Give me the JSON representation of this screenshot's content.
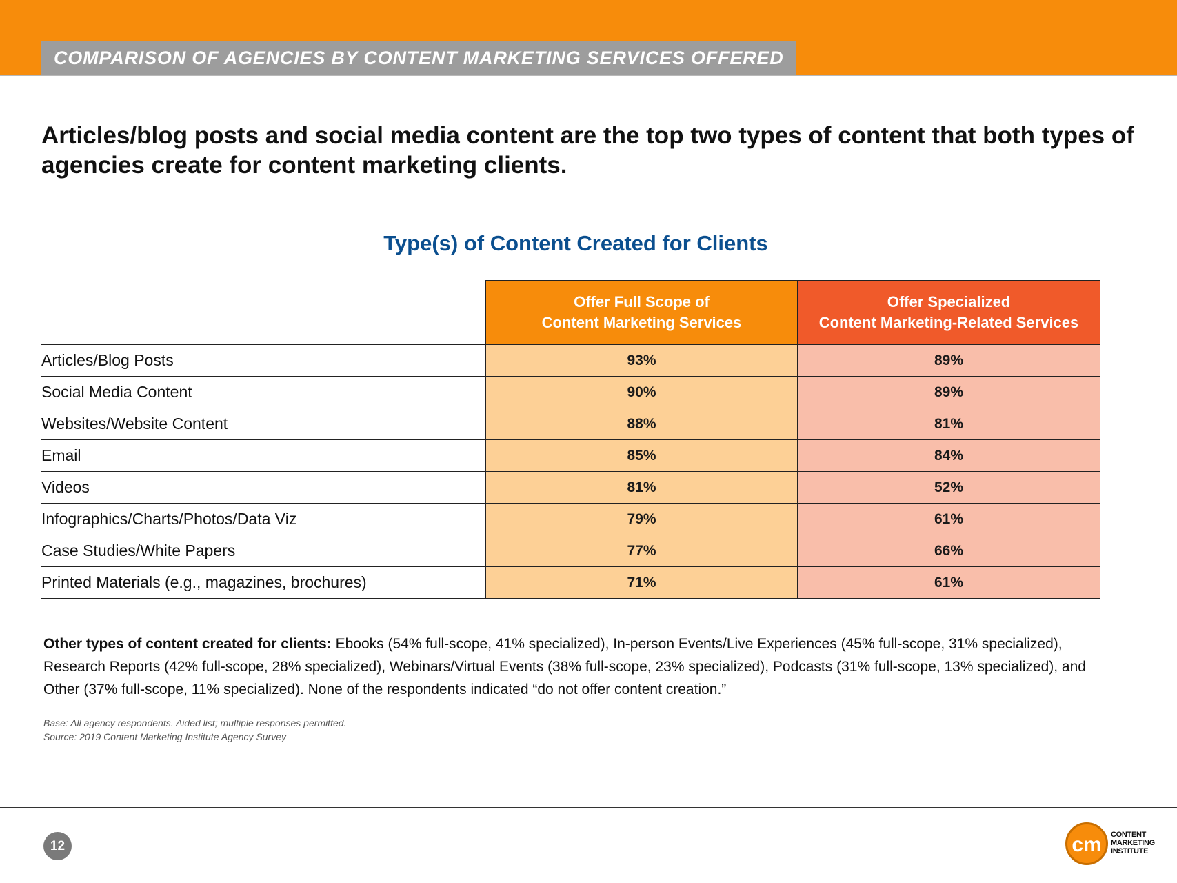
{
  "header": {
    "section_title": "COMPARISON OF AGENCIES BY CONTENT MARKETING SERVICES OFFERED"
  },
  "headline": "Articles/blog posts and social media content are the top two types of content that both types of agencies create for content marketing clients.",
  "table": {
    "title": "Type(s) of Content Created for Clients",
    "col_full_line1": "Offer Full Scope of",
    "col_full_line2": "Content Marketing Services",
    "col_spec_line1": "Offer Specialized",
    "col_spec_line2": "Content Marketing-Related Services",
    "rows": [
      {
        "label": "Articles/Blog Posts",
        "full": "93%",
        "spec": "89%"
      },
      {
        "label": "Social Media Content",
        "full": "90%",
        "spec": "89%"
      },
      {
        "label": "Websites/Website Content",
        "full": "88%",
        "spec": "81%"
      },
      {
        "label": "Email",
        "full": "85%",
        "spec": "84%"
      },
      {
        "label": "Videos",
        "full": "81%",
        "spec": "52%"
      },
      {
        "label": "Infographics/Charts/Photos/Data Viz",
        "full": "79%",
        "spec": "61%"
      },
      {
        "label": "Case Studies/White Papers",
        "full": "77%",
        "spec": "66%"
      },
      {
        "label": "Printed Materials (e.g., magazines, brochures)",
        "full": "71%",
        "spec": "61%"
      }
    ]
  },
  "note": {
    "lead": "Other types of content created for clients:",
    "body": " Ebooks (54% full-scope, 41% specialized), In-person Events/Live Experiences (45% full-scope, 31% specialized), Research Reports (42% full-scope, 28% specialized), Webinars/Virtual Events (38% full-scope, 23% specialized), Podcasts (31% full-scope, 13% specialized), and Other (37% full-scope, 11% specialized). None of the respondents indicated “do not offer content creation.”"
  },
  "base_text": "Base: All agency respondents. Aided list; multiple responses permitted.",
  "source_text": "Source: 2019 Content Marketing Institute Agency Survey",
  "footer": {
    "page_number": "12",
    "logo_mark": "cm",
    "logo_line1": "CONTENT",
    "logo_line2": "MARKETING",
    "logo_line3": "INSTITUTE"
  }
}
